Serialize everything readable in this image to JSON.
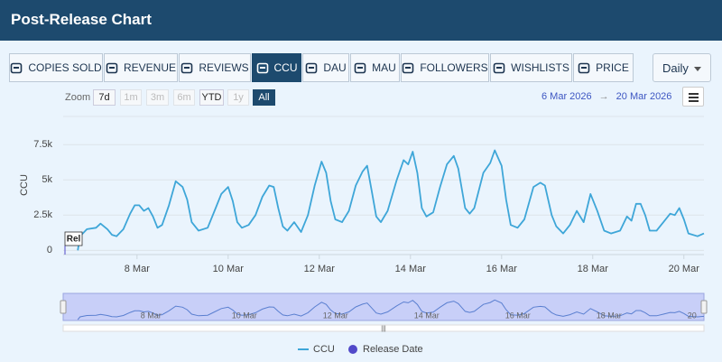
{
  "header": {
    "title": "Post-Release Chart"
  },
  "tabs": [
    {
      "label": "COPIES SOLD",
      "selected": false
    },
    {
      "label": "REVENUE",
      "selected": false
    },
    {
      "label": "REVIEWS",
      "selected": false
    },
    {
      "label": "CCU",
      "selected": true
    },
    {
      "label": "DAU",
      "selected": false
    },
    {
      "label": "MAU",
      "selected": false
    },
    {
      "label": "FOLLOWERS",
      "selected": false
    },
    {
      "label": "WISHLISTS",
      "selected": false
    },
    {
      "label": "PRICE",
      "selected": false
    }
  ],
  "interval": "Daily",
  "zoom": {
    "label": "Zoom",
    "options": [
      {
        "label": "7d",
        "enabled": true,
        "selected": false
      },
      {
        "label": "1m",
        "enabled": false,
        "selected": false
      },
      {
        "label": "3m",
        "enabled": false,
        "selected": false
      },
      {
        "label": "6m",
        "enabled": false,
        "selected": false
      },
      {
        "label": "YTD",
        "enabled": true,
        "selected": false
      },
      {
        "label": "1y",
        "enabled": false,
        "selected": false
      },
      {
        "label": "All",
        "enabled": true,
        "selected": true
      }
    ]
  },
  "range": {
    "from": "6 Mar 2026",
    "separator": "→",
    "to": "20 Mar 2026"
  },
  "chart_data": {
    "type": "line",
    "y_label": "CCU",
    "x": [
      6.7,
      6.75,
      6.9,
      7.1,
      7.2,
      7.35,
      7.45,
      7.55,
      7.7,
      7.85,
      7.95,
      8.05,
      8.15,
      8.25,
      8.35,
      8.45,
      8.55,
      8.7,
      8.85,
      9.0,
      9.1,
      9.2,
      9.35,
      9.55,
      9.7,
      9.85,
      10.0,
      10.1,
      10.2,
      10.3,
      10.45,
      10.6,
      10.75,
      10.9,
      11.0,
      11.1,
      11.2,
      11.3,
      11.45,
      11.6,
      11.75,
      11.9,
      12.05,
      12.15,
      12.25,
      12.35,
      12.5,
      12.65,
      12.8,
      12.95,
      13.05,
      13.15,
      13.25,
      13.35,
      13.5,
      13.7,
      13.85,
      13.95,
      14.05,
      14.15,
      14.25,
      14.35,
      14.5,
      14.65,
      14.8,
      14.95,
      15.05,
      15.2,
      15.3,
      15.4,
      15.6,
      15.75,
      15.85,
      16.0,
      16.1,
      16.2,
      16.35,
      16.5,
      16.7,
      16.85,
      16.95,
      17.1,
      17.2,
      17.35,
      17.5,
      17.65,
      17.8,
      17.95,
      18.1,
      18.25,
      18.4,
      18.6,
      18.75,
      18.85,
      18.95,
      19.05,
      19.15,
      19.25,
      19.4,
      19.55,
      19.7,
      19.8,
      19.9,
      20.0,
      20.1,
      20.3,
      20.44
    ],
    "series": [
      {
        "name": "CCU",
        "color": "#3ea6d8",
        "values": [
          0,
          1000,
          1500,
          1600,
          1900,
          1500,
          1100,
          1000,
          1500,
          2600,
          3200,
          3200,
          2800,
          3000,
          2400,
          1600,
          1800,
          3200,
          4900,
          4500,
          3600,
          2000,
          1400,
          1600,
          2800,
          4000,
          4500,
          3500,
          2000,
          1600,
          1800,
          2500,
          3800,
          4600,
          4500,
          3000,
          1700,
          1400,
          2000,
          1300,
          2500,
          4600,
          6300,
          5500,
          3500,
          2200,
          2000,
          2800,
          4600,
          5600,
          6000,
          4200,
          2400,
          2000,
          2800,
          5000,
          6400,
          6100,
          7000,
          5500,
          3000,
          2400,
          2700,
          4500,
          6100,
          6700,
          5800,
          3000,
          2600,
          3000,
          5500,
          6200,
          7100,
          6000,
          3600,
          1800,
          1600,
          2200,
          4500,
          4800,
          4600,
          2500,
          1700,
          1200,
          1800,
          2800,
          2000,
          4000,
          2800,
          1400,
          1200,
          1400,
          2400,
          2100,
          3300,
          3300,
          2500,
          1400,
          1400,
          2000,
          2600,
          2500,
          3000,
          2200,
          1200,
          1000,
          1200
        ]
      }
    ],
    "xlim": [
      6.38,
      20.44
    ],
    "ylim": [
      -300,
      9500
    ],
    "xticks": [
      {
        "value": 8,
        "label": "8 Mar"
      },
      {
        "value": 10,
        "label": "10 Mar"
      },
      {
        "value": 12,
        "label": "12 Mar"
      },
      {
        "value": 14,
        "label": "14 Mar"
      },
      {
        "value": 16,
        "label": "16 Mar"
      },
      {
        "value": 18,
        "label": "18 Mar"
      },
      {
        "value": 20,
        "label": "20 Mar"
      }
    ],
    "yticks": [
      0,
      {
        "value": 2500,
        "label": "2.5k"
      },
      {
        "value": 5000,
        "label": "5k"
      },
      {
        "value": 7500,
        "label": "7.5k"
      }
    ],
    "grid": true,
    "flag": {
      "label": "Rel",
      "name": "Release Date",
      "color": "#5149c9"
    }
  }
}
